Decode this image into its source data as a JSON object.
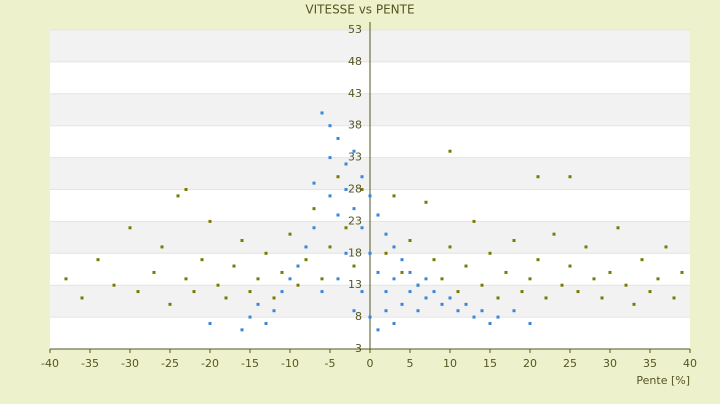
{
  "chart_data": {
    "type": "scatter",
    "title": "VITESSE vs PENTE",
    "x_label": "Pente [%]",
    "xlim": [
      -40,
      40
    ],
    "xticks": [
      -40,
      -35,
      -30,
      -25,
      -20,
      -15,
      -10,
      -5,
      0,
      5,
      10,
      15,
      20,
      25,
      30,
      35,
      40
    ],
    "ylim": [
      3,
      53
    ],
    "yticks": [
      3,
      8,
      13,
      18,
      23,
      28,
      33,
      38,
      43,
      48,
      53
    ],
    "series": [
      {
        "name": "olive",
        "color": "#7a7a00",
        "x": [
          -38,
          -36,
          -34,
          -32,
          -30,
          -29,
          -27,
          -26,
          -25,
          -24,
          -23,
          -22,
          -21,
          -20,
          -19,
          -18,
          -17,
          -16,
          -15,
          -14,
          -13,
          -12,
          -11,
          -10,
          -9,
          -8,
          -7,
          -6,
          -5,
          -4,
          -3,
          -2,
          -1,
          1,
          2,
          3,
          4,
          5,
          6,
          7,
          8,
          9,
          10,
          11,
          12,
          13,
          14,
          15,
          16,
          17,
          18,
          19,
          20,
          21,
          22,
          23,
          24,
          25,
          26,
          27,
          28,
          29,
          30,
          31,
          32,
          33,
          34,
          35,
          36,
          37,
          38,
          39,
          10,
          21,
          25,
          -23
        ],
        "values": [
          14,
          11,
          17,
          13,
          22,
          12,
          15,
          19,
          10,
          27,
          14,
          12,
          17,
          23,
          13,
          11,
          16,
          20,
          12,
          14,
          18,
          11,
          15,
          21,
          13,
          17,
          25,
          14,
          19,
          30,
          22,
          16,
          28,
          24,
          18,
          27,
          15,
          20,
          13,
          26,
          17,
          14,
          19,
          12,
          16,
          23,
          13,
          18,
          11,
          15,
          20,
          12,
          14,
          17,
          11,
          21,
          13,
          16,
          12,
          19,
          14,
          11,
          15,
          22,
          13,
          10,
          17,
          12,
          14,
          19,
          11,
          15,
          34,
          30,
          30,
          28
        ]
      },
      {
        "name": "blue",
        "color": "#3a86d8",
        "x": [
          -6,
          -5,
          -5,
          -4,
          -3,
          -3,
          -2,
          -2,
          -1,
          -1,
          0,
          0,
          1,
          1,
          2,
          2,
          3,
          3,
          4,
          4,
          5,
          5,
          6,
          6,
          7,
          7,
          8,
          9,
          10,
          11,
          12,
          13,
          14,
          15,
          -7,
          -8,
          -9,
          -10,
          -11,
          -12,
          -13,
          -14,
          -15,
          -16,
          -4,
          -4,
          -3,
          -2,
          -1,
          0,
          1,
          2,
          3,
          -6,
          -7,
          -5,
          16,
          18,
          20,
          -20
        ],
        "values": [
          40,
          38,
          33,
          36,
          32,
          28,
          34,
          25,
          30,
          22,
          27,
          18,
          24,
          15,
          21,
          12,
          19,
          14,
          17,
          10,
          15,
          12,
          13,
          9,
          14,
          11,
          12,
          10,
          11,
          9,
          10,
          8,
          9,
          7,
          22,
          19,
          16,
          14,
          12,
          9,
          7,
          10,
          8,
          6,
          24,
          14,
          18,
          9,
          12,
          8,
          6,
          9,
          7,
          12,
          29,
          27,
          8,
          9,
          7,
          7
        ]
      }
    ]
  }
}
